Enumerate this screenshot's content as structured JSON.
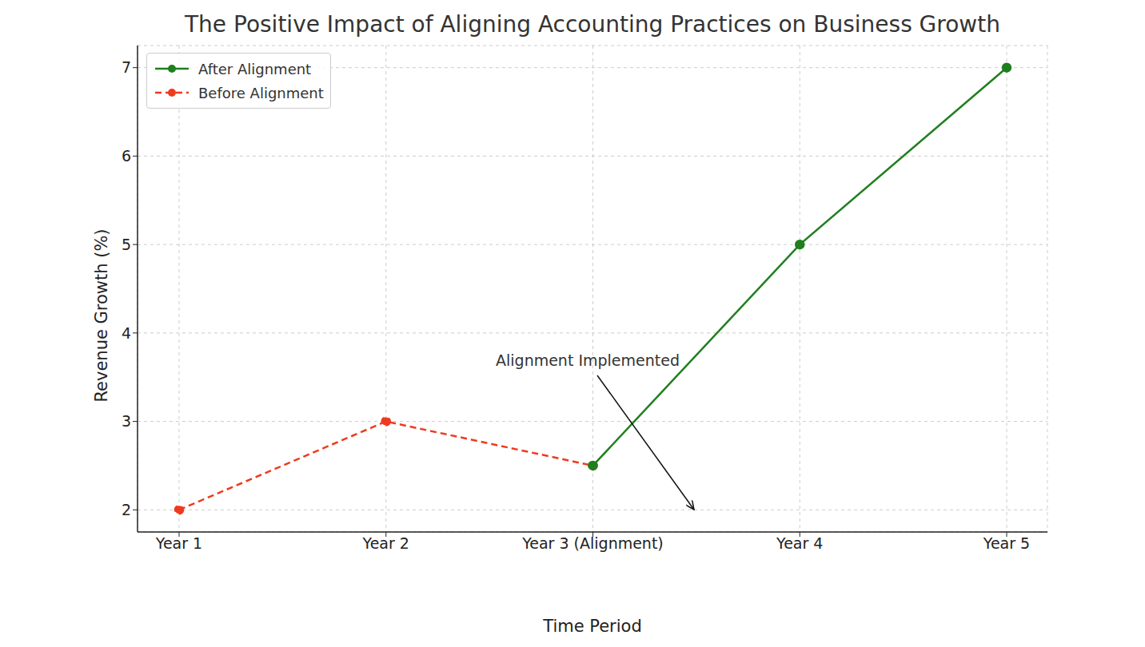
{
  "chart_data": {
    "type": "line",
    "title": "The Positive Impact of Aligning Accounting Practices on Business Growth",
    "x_label": "Time Period",
    "y_label": "Revenue Growth (%)",
    "categories": [
      "Year 1",
      "Year 2",
      "Year 3 (Alignment)",
      "Year 4",
      "Year 5"
    ],
    "series": [
      {
        "name": "Before Alignment",
        "color": "#ee3a1f",
        "values": [
          2,
          3,
          2.5,
          null,
          null
        ],
        "marker": "o",
        "line_style": "dashed"
      },
      {
        "name": "After Alignment",
        "color": "#1f7f1f",
        "values": [
          null,
          null,
          2.5,
          5,
          7
        ],
        "marker": "o",
        "line_style": "solid"
      }
    ],
    "ylim": [
      1.75,
      7.25
    ],
    "yticks": [
      2,
      3,
      4,
      5,
      6,
      7
    ],
    "grid": true,
    "legend": "upper left",
    "annotations": [
      "Alignment Implemented"
    ]
  }
}
